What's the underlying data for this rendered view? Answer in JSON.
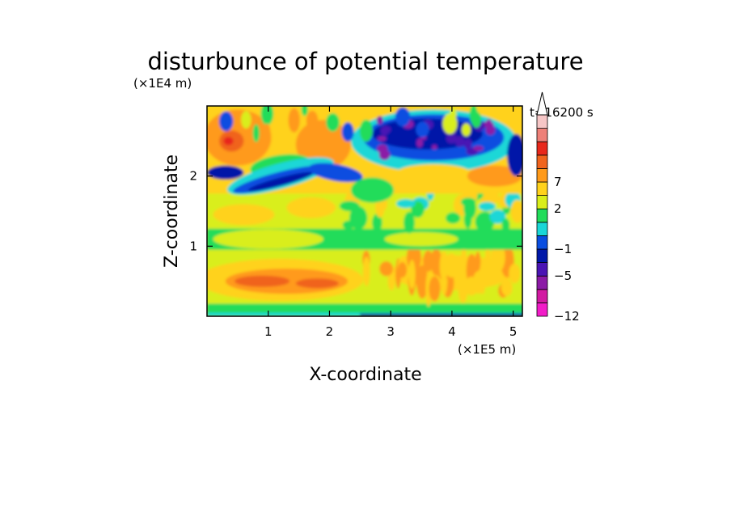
{
  "chart_data": {
    "type": "heatmap",
    "title": "disturbunce of potential temperature",
    "xlabel": "X-coordinate",
    "ylabel": "Z-coordinate",
    "x_unit": "(×1E5 m)",
    "y_unit": "(×1E4 m)",
    "time_label": "t=16200 s",
    "xlim": [
      0,
      5.15
    ],
    "ylim": [
      0,
      3.0
    ],
    "x_ticks": [
      {
        "value": 1,
        "label": "1"
      },
      {
        "value": 2,
        "label": "2"
      },
      {
        "value": 3,
        "label": "3"
      },
      {
        "value": 4,
        "label": "4"
      },
      {
        "value": 5,
        "label": "5"
      }
    ],
    "y_ticks": [
      {
        "value": 1,
        "label": "1"
      },
      {
        "value": 2,
        "label": "2"
      }
    ],
    "colorbar": {
      "levels": [
        "-12",
        "",
        "",
        "-5",
        "",
        "-1",
        "",
        "",
        "2",
        "",
        "7",
        "",
        ""
      ],
      "labels": [
        {
          "index": 0,
          "text": "−12"
        },
        {
          "index": 3,
          "text": "−5"
        },
        {
          "index": 5,
          "text": "−1"
        },
        {
          "index": 8,
          "text": "2"
        },
        {
          "index": 10,
          "text": "7"
        }
      ],
      "colors": [
        "#f21cc8",
        "#d21aa2",
        "#8c1aa6",
        "#4a14b4",
        "#0018a8",
        "#0a4ee0",
        "#1ad7d7",
        "#22dc5a",
        "#d9ee1a",
        "#ffd21c",
        "#ff9a1a",
        "#f0641e",
        "#e8281c",
        "#ee8078",
        "#f6c6c6"
      ],
      "extend": "max"
    },
    "field_summary": [
      {
        "x_range": [
          0,
          5.15
        ],
        "z_range": [
          0.02,
          0.18
        ],
        "level": "green/cyan, -1 to 1"
      },
      {
        "x_range": [
          0,
          2.5
        ],
        "z_range": [
          0.2,
          0.9
        ],
        "level": "orange, ~3"
      },
      {
        "x_range": [
          2.5,
          5.15
        ],
        "z_range": [
          0.2,
          0.9
        ],
        "level": "yellow/orange, 2 to 4"
      },
      {
        "x_range": [
          0,
          5.15
        ],
        "z_range": [
          0.9,
          1.3
        ],
        "level": "green/yellow, -1 to 2"
      },
      {
        "x_range": [
          0.2,
          2.6
        ],
        "z_range": [
          1.7,
          2.2
        ],
        "level": "blue/purple band, -3 to -5"
      },
      {
        "x_range": [
          2.4,
          5.0
        ],
        "z_range": [
          2.0,
          2.9
        ],
        "level": "blue/purple cells, -3 to -8"
      },
      {
        "x_range": [
          0,
          2.5
        ],
        "z_range": [
          2.2,
          2.9
        ],
        "level": "orange/red, 3 to 7"
      }
    ]
  }
}
